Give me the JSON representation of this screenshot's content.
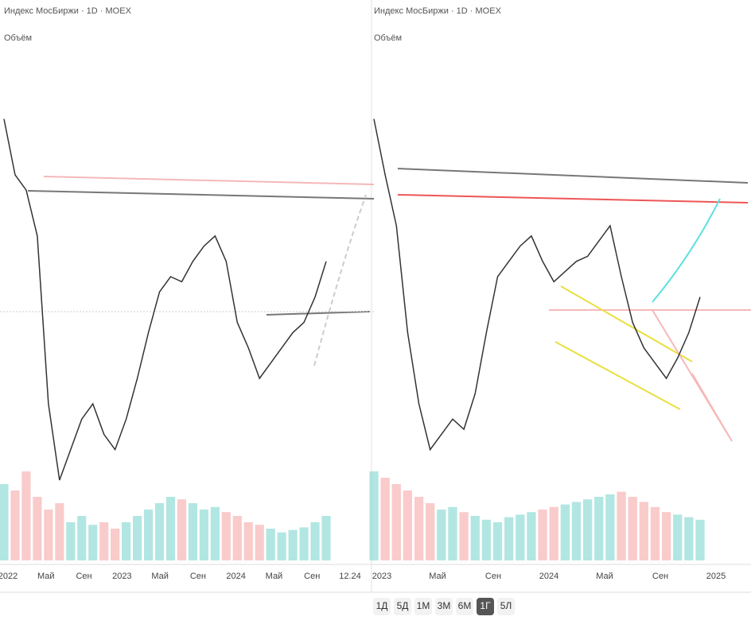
{
  "panels": [
    {
      "title": "Индекс МосБиржи · 1D · MOEX",
      "volume_label": "Объём",
      "ylim": [
        0,
        100
      ],
      "values": [
        86,
        75,
        72,
        63,
        30,
        15,
        21,
        27,
        30,
        24,
        21,
        27,
        35,
        44,
        52,
        55,
        54,
        58,
        61,
        63,
        58,
        46,
        41,
        35,
        38,
        41,
        44,
        46,
        51,
        58
      ],
      "volumes": [
        60,
        55,
        70,
        50,
        40,
        45,
        30,
        35,
        28,
        30,
        25,
        30,
        35,
        40,
        45,
        50,
        48,
        45,
        40,
        42,
        38,
        35,
        30,
        28,
        25,
        22,
        24,
        26,
        30,
        35
      ],
      "x_labels": [
        "2022",
        "Май",
        "Сен",
        "2023",
        "Май",
        "Сен",
        "2024",
        "Май",
        "Сен",
        "12.24"
      ]
    },
    {
      "title": "Индекс МосБиржи · 1D · MOEX",
      "volume_label": "Объём",
      "ylim": [
        0,
        100
      ],
      "values": [
        86,
        75,
        65,
        44,
        30,
        21,
        24,
        27,
        25,
        32,
        44,
        55,
        58,
        61,
        63,
        58,
        54,
        56,
        58,
        59,
        62,
        65,
        55,
        46,
        41,
        38,
        35,
        39,
        44,
        51
      ],
      "volumes": [
        70,
        65,
        60,
        55,
        50,
        45,
        40,
        42,
        38,
        35,
        32,
        30,
        34,
        36,
        38,
        40,
        42,
        44,
        46,
        48,
        50,
        52,
        54,
        50,
        46,
        42,
        38,
        36,
        34,
        32
      ],
      "x_labels": [
        "2023",
        "Май",
        "Сен",
        "2024",
        "Май",
        "Сен",
        "2025"
      ]
    }
  ],
  "toolbar": [
    "1Д",
    "5Д",
    "1М",
    "3М",
    "6М",
    "1Г",
    "5Л"
  ]
}
